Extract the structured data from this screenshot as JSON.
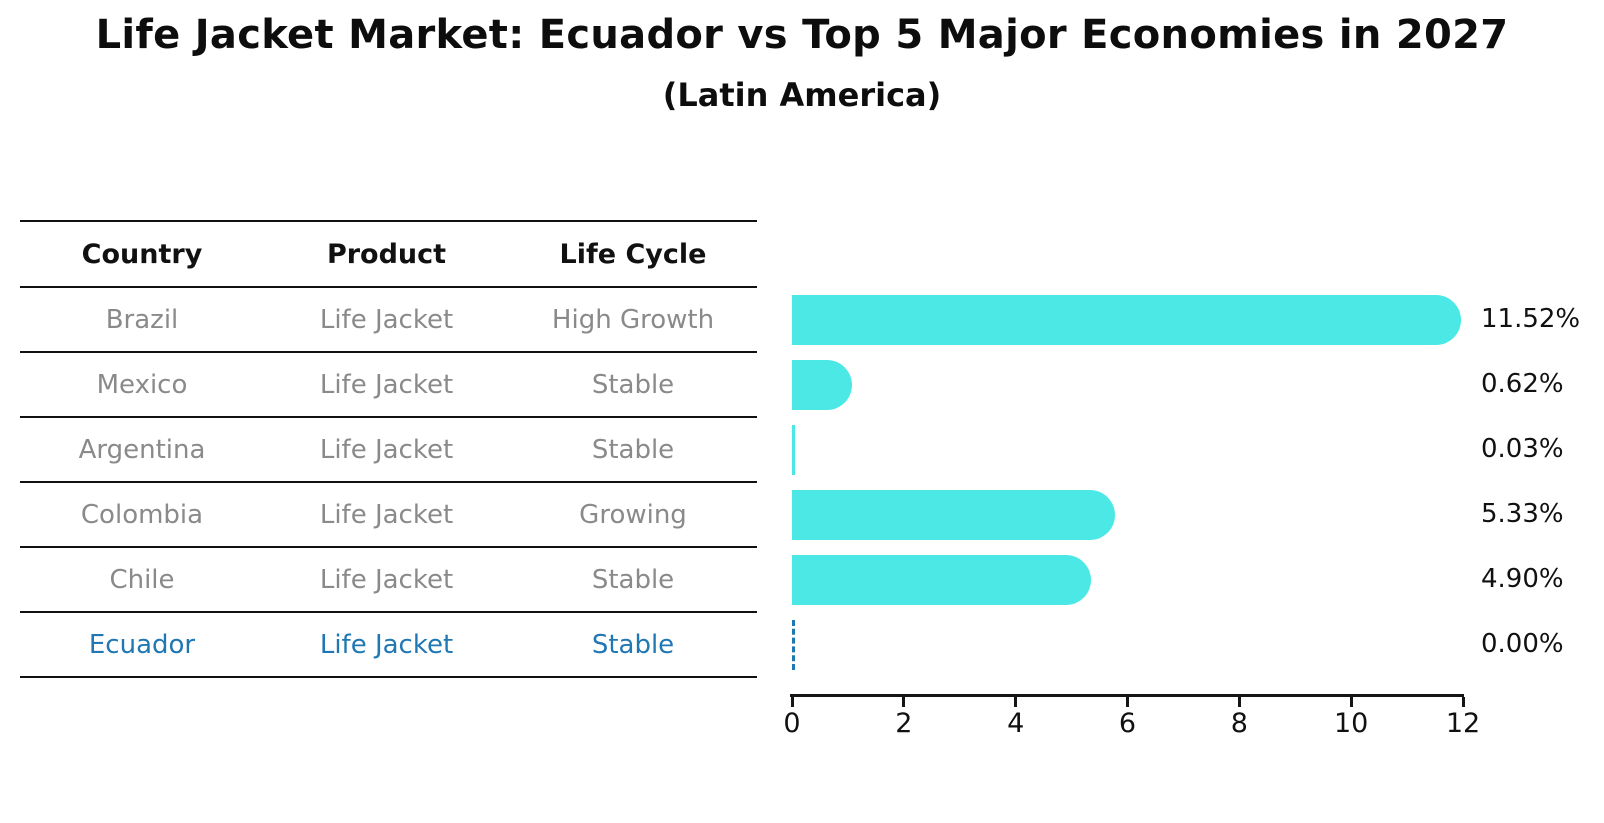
{
  "title": "Life Jacket Market: Ecuador vs Top 5 Major Economies in 2027",
  "subtitle": "(Latin America)",
  "table": {
    "headers": [
      "Country",
      "Product",
      "Life Cycle"
    ],
    "rows": [
      {
        "country": "Brazil",
        "product": "Life Jacket",
        "life_cycle": "High Growth",
        "highlighted": false
      },
      {
        "country": "Mexico",
        "product": "Life Jacket",
        "life_cycle": "Stable",
        "highlighted": false
      },
      {
        "country": "Argentina",
        "product": "Life Jacket",
        "life_cycle": "Stable",
        "highlighted": false
      },
      {
        "country": "Colombia",
        "product": "Life Jacket",
        "life_cycle": "Growing",
        "highlighted": false
      },
      {
        "country": "Chile",
        "product": "Life Jacket",
        "life_cycle": "Stable",
        "highlighted": false
      },
      {
        "country": "Ecuador",
        "product": "Life Jacket",
        "life_cycle": "Stable",
        "highlighted": true
      }
    ]
  },
  "chart_data": {
    "type": "bar",
    "orientation": "horizontal",
    "title": "Life Jacket Market: Ecuador vs Top 5 Major Economies in 2027",
    "subtitle": "(Latin America)",
    "categories": [
      "Brazil",
      "Mexico",
      "Argentina",
      "Colombia",
      "Chile",
      "Ecuador"
    ],
    "values": [
      11.52,
      0.62,
      0.03,
      5.33,
      4.9,
      0.0
    ],
    "value_labels": [
      "11.52%",
      "0.62%",
      "0.03%",
      "5.33%",
      "4.90%",
      "0.00%"
    ],
    "unit": "percent",
    "xlim": [
      0,
      12
    ],
    "x_ticks": [
      0,
      2,
      4,
      6,
      8,
      10,
      12
    ],
    "grid": false,
    "legend": "none",
    "bar_color": "#4BE8E6",
    "highlight_color": "#1f77b4",
    "zero_value_style": "dashed-blue-line"
  },
  "colors": {
    "background": "#ffffff",
    "bar": "#4BE8E6",
    "highlight_blue": "#1f77b4",
    "table_text_gray": "#8a8a8a",
    "line_black": "#111111"
  }
}
